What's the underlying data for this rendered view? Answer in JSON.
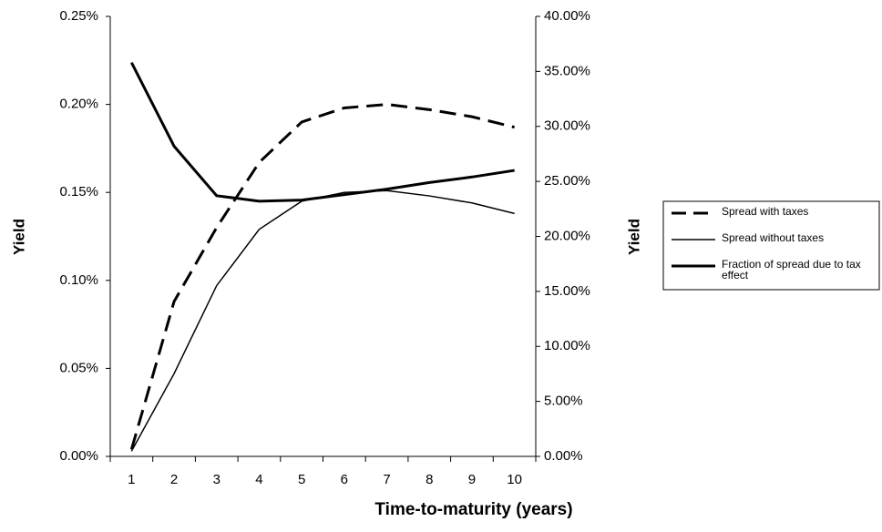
{
  "chart_data": {
    "type": "line",
    "x_label": "Time-to-maturity (years)",
    "y_label": "Yield",
    "y2_label": "Yield",
    "categories": [
      "1",
      "2",
      "3",
      "4",
      "5",
      "6",
      "7",
      "8",
      "9",
      "10"
    ],
    "ylim": [
      0,
      0.25
    ],
    "yticks": [
      {
        "value": 0,
        "label": "0.00%"
      },
      {
        "value": 0.05,
        "label": "0.05%"
      },
      {
        "value": 0.1,
        "label": "0.10%"
      },
      {
        "value": 0.15,
        "label": "0.15%"
      },
      {
        "value": 0.2,
        "label": "0.20%"
      },
      {
        "value": 0.25,
        "label": "0.25%"
      }
    ],
    "y2lim": [
      0,
      40
    ],
    "y2ticks": [
      {
        "value": 0,
        "label": "0.00%"
      },
      {
        "value": 5,
        "label": "5.00%"
      },
      {
        "value": 10,
        "label": "10.00%"
      },
      {
        "value": 15,
        "label": "15.00%"
      },
      {
        "value": 20,
        "label": "20.00%"
      },
      {
        "value": 25,
        "label": "25.00%"
      },
      {
        "value": 30,
        "label": "30.00%"
      },
      {
        "value": 35,
        "label": "35.00%"
      },
      {
        "value": 40,
        "label": "40.00%"
      }
    ],
    "legend": "right",
    "series": [
      {
        "name": "Spread with taxes",
        "color": "#000000",
        "width": 3,
        "dash": true,
        "values": [
          0.004,
          0.088,
          0.13,
          0.167,
          0.19,
          0.198,
          0.2,
          0.197,
          0.193,
          0.187
        ]
      },
      {
        "name": "Spread without taxes",
        "color": "#000000",
        "width": 1.5,
        "dash": false,
        "values": [
          0.003,
          0.047,
          0.097,
          0.129,
          0.145,
          0.15,
          0.151,
          0.148,
          0.144,
          0.138
        ]
      },
      {
        "name": "Fraction of spread due to tax effect",
        "color": "#000000",
        "width": 3,
        "dash": false,
        "axis": "y2",
        "values": [
          35.8,
          28.2,
          23.7,
          23.2,
          23.3,
          23.8,
          24.3,
          24.9,
          25.4,
          26.0
        ]
      }
    ]
  }
}
